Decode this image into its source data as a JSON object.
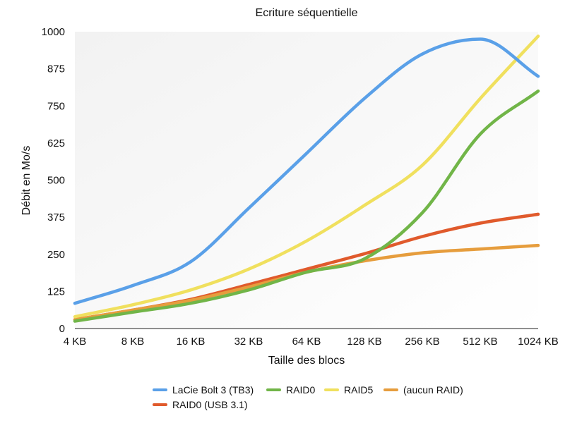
{
  "chart_data": {
    "type": "line",
    "title": "Ecriture séquentielle",
    "xlabel": "Taille des blocs",
    "ylabel": "Débit en Mo/s",
    "categories": [
      "4 KB",
      "8 KB",
      "16 KB",
      "32 KB",
      "64 KB",
      "128 KB",
      "256 KB",
      "512 KB",
      "1024 KB"
    ],
    "yticks": [
      0,
      125,
      250,
      375,
      500,
      625,
      750,
      875,
      1000
    ],
    "ylim": [
      0,
      1000
    ],
    "grid": false,
    "legend_position": "bottom",
    "series": [
      {
        "name": "LaCie Bolt 3 (TB3)",
        "color": "#5aa0e8",
        "values": [
          85,
          145,
          225,
          405,
          590,
          775,
          925,
          975,
          850
        ]
      },
      {
        "name": "RAID0",
        "color": "#71b548",
        "values": [
          25,
          55,
          85,
          130,
          190,
          235,
          390,
          655,
          800
        ]
      },
      {
        "name": "RAID5",
        "color": "#f0e05e",
        "values": [
          40,
          80,
          130,
          200,
          295,
          415,
          550,
          775,
          985
        ]
      },
      {
        "name": "(aucun RAID)",
        "color": "#e69d3d",
        "values": [
          30,
          62,
          95,
          140,
          190,
          228,
          255,
          268,
          280
        ]
      },
      {
        "name": "RAID0 (USB 3.1)",
        "color": "#e05a2c",
        "values": [
          30,
          62,
          98,
          148,
          200,
          252,
          310,
          355,
          385
        ]
      }
    ]
  }
}
